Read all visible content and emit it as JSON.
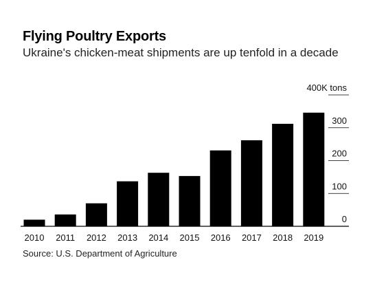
{
  "title": "Flying Poultry Exports",
  "subtitle": "Ukraine's chicken-meat shipments are up tenfold in a decade",
  "source": "Source: U.S. Department of Agriculture",
  "chart_data": {
    "type": "bar",
    "categories": [
      "2010",
      "2011",
      "2012",
      "2013",
      "2014",
      "2015",
      "2016",
      "2017",
      "2018",
      "2019"
    ],
    "values": [
      20,
      36,
      70,
      137,
      163,
      153,
      231,
      262,
      312,
      346
    ],
    "ylabel": "400K tons",
    "yticks": [
      0,
      100,
      200,
      300,
      400
    ],
    "ytick_labels": [
      "0",
      "100",
      "200",
      "300"
    ],
    "ylim": [
      0,
      400
    ],
    "grid": true,
    "bar_color": "#000000",
    "gridline_color": "#000000"
  }
}
